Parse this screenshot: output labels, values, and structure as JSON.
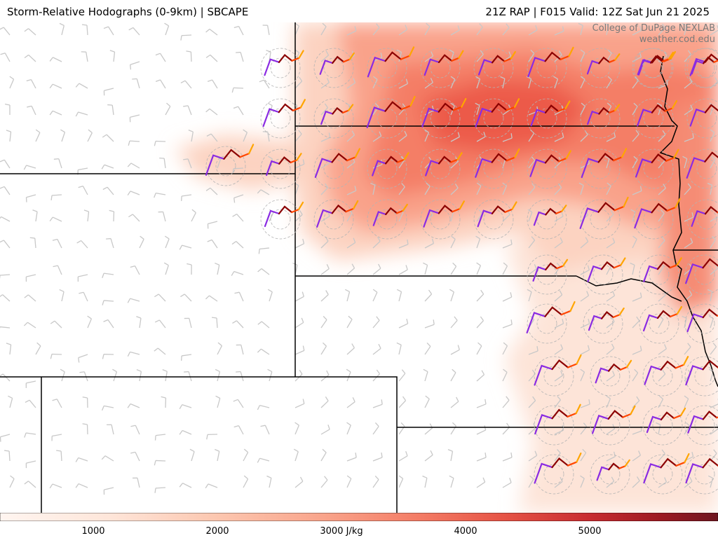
{
  "header": {
    "title_left": "Storm-Relative Hodographs (0-9km) | SBCAPE",
    "title_right": "21Z RAP | F015 Valid: 12Z Sat Jun 21 2025"
  },
  "credit": {
    "line1": "College of DuPage NEXLAB",
    "line2": "weather.cod.edu"
  },
  "colorbar": {
    "unit": "J/kg",
    "tick_labels": [
      "1000",
      "2000",
      "3000 J/kg",
      "4000",
      "5000"
    ],
    "colors": [
      "#fff5f0",
      "#fee0d2",
      "#fcbba1",
      "#fc9272",
      "#fb6a4a",
      "#ef3b2c",
      "#cb181d",
      "#a50f15",
      "#67000d"
    ]
  },
  "hodograph_colors": {
    "segment_0_3km": "#8a2be2",
    "segment_3_6km": "#8b0000",
    "segment_6_7km": "#ff4500",
    "segment_7_9km": "#ffa500"
  },
  "map_colors": {
    "state_borders": "#000000",
    "wind_barbs": "#c8c8c8",
    "range_rings": "#b4b4b4"
  }
}
